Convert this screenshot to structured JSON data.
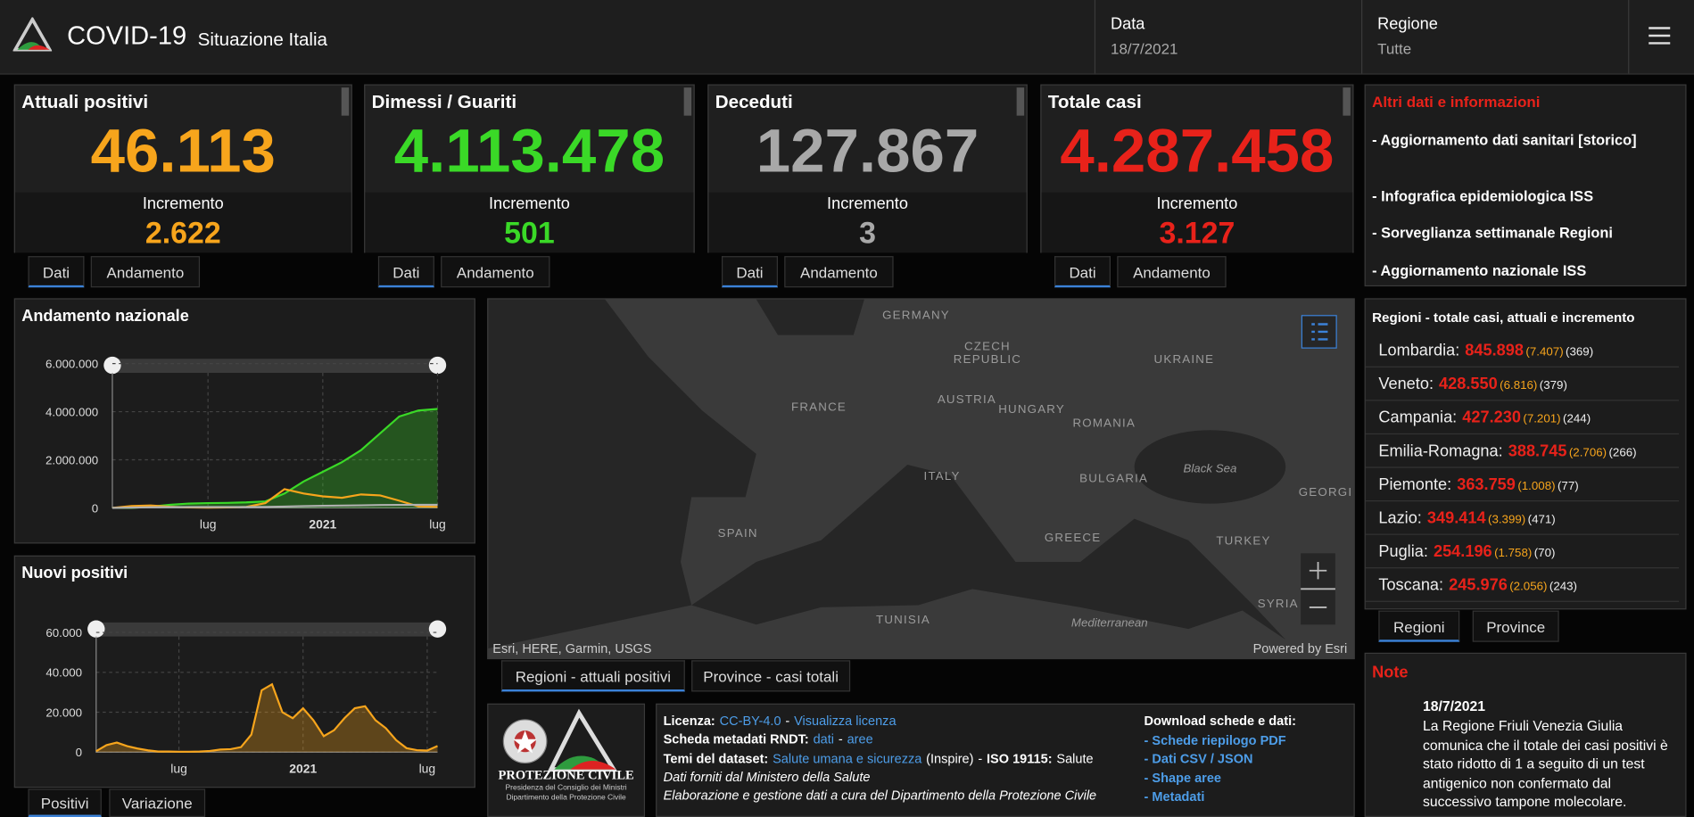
{
  "header": {
    "title": "COVID-19",
    "subtitle": "Situazione Italia",
    "date_label": "Data",
    "date": "18/7/2021",
    "region_label": "Regione",
    "region": "Tutte"
  },
  "cards": [
    {
      "title": "Attuali positivi",
      "value": "46.113",
      "increment_label": "Incremento",
      "increment": "2.622",
      "color": "#f7a51c",
      "tabs": [
        "Dati",
        "Andamento"
      ]
    },
    {
      "title": "Dimessi / Guariti",
      "value": "4.113.478",
      "increment_label": "Incremento",
      "increment": "501",
      "color": "#3ad927",
      "tabs": [
        "Dati",
        "Andamento"
      ]
    },
    {
      "title": "Deceduti",
      "value": "127.867",
      "increment_label": "Incremento",
      "increment": "3",
      "color": "#a8a8a8",
      "tabs": [
        "Dati",
        "Andamento"
      ]
    },
    {
      "title": "Totale casi",
      "value": "4.287.458",
      "increment_label": "Incremento",
      "increment": "3.127",
      "color": "#e8221a",
      "tabs": [
        "Dati",
        "Andamento"
      ]
    }
  ],
  "info": {
    "title": "Altri dati e informazioni",
    "links": [
      "- Aggiornamento dati sanitari [storico]",
      "- Infografica epidemiologica ISS",
      "- Sorveglianza settimanale Regioni",
      "- Aggiornamento nazionale ISS"
    ]
  },
  "regions": {
    "title": "Regioni - totale casi, attuali e incremento",
    "rows": [
      {
        "name": "Lombardia:",
        "total": "845.898",
        "current": "(7.407)",
        "increment": "(369)"
      },
      {
        "name": "Veneto:",
        "total": "428.550",
        "current": "(6.816)",
        "increment": "(379)"
      },
      {
        "name": "Campania:",
        "total": "427.230",
        "current": "(7.201)",
        "increment": "(244)"
      },
      {
        "name": "Emilia-Romagna:",
        "total": "388.745",
        "current": "(2.706)",
        "increment": "(266)"
      },
      {
        "name": "Piemonte:",
        "total": "363.759",
        "current": "(1.008)",
        "increment": "(77)"
      },
      {
        "name": "Lazio:",
        "total": "349.414",
        "current": "(3.399)",
        "increment": "(471)"
      },
      {
        "name": "Puglia:",
        "total": "254.196",
        "current": "(1.758)",
        "increment": "(70)"
      },
      {
        "name": "Toscana:",
        "total": "245.976",
        "current": "(2.056)",
        "increment": "(243)"
      }
    ],
    "tabs": [
      "Regioni",
      "Province"
    ]
  },
  "map": {
    "labels": [
      "GERMANY",
      "CZECH",
      "REPUBLIC",
      "UKRAINE",
      "FRANCE",
      "AUSTRIA",
      "HUNGARY",
      "ROMANIA",
      "ITALY",
      "BULGARIA",
      "Black Sea",
      "GEORGI",
      "SPAIN",
      "GREECE",
      "TURKEY",
      "TUNISIA",
      "Mediterranean",
      "SYRIA"
    ],
    "attribution": "Esri, HERE, Garmin, USGS",
    "powered": "Powered by Esri",
    "tabs": [
      "Regioni - attuali positivi",
      "Province - casi totali"
    ]
  },
  "note": {
    "title": "Note",
    "date": "18/7/2021",
    "text": "La Regione Friuli Venezia Giulia comunica che il totale dei casi positivi è stato ridotto di 1 a seguito di un test antigenico non confermato dal successivo tampone molecolare."
  },
  "footer": {
    "agency": "PROTEZIONE CIVILE",
    "agency_sub": "Presidenza del Consiglio dei Ministri",
    "agency_sub2": "Dipartimento della Protezione Civile",
    "lines": [
      [
        "Licenza:",
        "CC-BY-4.0",
        "-",
        "Visualizza licenza"
      ],
      [
        "Scheda metadati RNDT:",
        "dati",
        "-",
        "aree"
      ],
      [
        "Temi del dataset:",
        "Salute umana e sicurezza",
        "(Inspire)",
        "-",
        "ISO 19115:",
        "Salute"
      ],
      [
        "Dati forniti dal Ministero della Salute"
      ],
      [
        "Elaborazione e gestione dati a cura del Dipartimento della Protezione Civile"
      ]
    ],
    "downloads_title": "Download schede e dati:",
    "downloads": [
      "- Schede riepilogo PDF",
      "- Dati CSV / JSON",
      "- Shape aree",
      "- Metadati"
    ]
  },
  "chart_data": [
    {
      "type": "line",
      "title": "Andamento nazionale",
      "categories": [
        null,
        null,
        null,
        null,
        null,
        "lug",
        null,
        null,
        null,
        null,
        null,
        "2021",
        null,
        null,
        null,
        null,
        null,
        "lug"
      ],
      "series": [
        {
          "color": "#3ad927",
          "area": true,
          "values": [
            0,
            1000,
            50000,
            130000,
            180000,
            200000,
            210000,
            230000,
            270000,
            600000,
            1100000,
            1500000,
            1900000,
            2400000,
            3100000,
            3800000,
            4050000,
            4113478
          ]
        },
        {
          "color": "#f7a51c",
          "values": [
            0,
            80000,
            100000,
            50000,
            20000,
            13000,
            20000,
            40000,
            200000,
            780000,
            600000,
            480000,
            420000,
            560000,
            520000,
            300000,
            60000,
            46113
          ]
        },
        {
          "color": "#b0b0b0",
          "values": [
            0,
            12000,
            28000,
            33000,
            34700,
            35100,
            35400,
            36000,
            40000,
            55000,
            74000,
            89000,
            98000,
            108000,
            121000,
            126000,
            127500,
            127867
          ]
        }
      ],
      "ylim": [
        0,
        6200000
      ],
      "yticks": [
        0,
        {
          "value": 2000000,
          "label": "2.000.000"
        },
        {
          "value": 4000000,
          "label": "4.000.000"
        },
        {
          "value": 6000000,
          "label": "6.000.000"
        }
      ],
      "grid": true
    },
    {
      "type": "area",
      "title": "Nuovi positivi",
      "categories": [
        null,
        null,
        null,
        null,
        null,
        null,
        null,
        null,
        "lug",
        null,
        null,
        null,
        null,
        null,
        null,
        null,
        null,
        null,
        null,
        null,
        "2021",
        null,
        null,
        null,
        null,
        null,
        null,
        null,
        null,
        null,
        null,
        null,
        "lug",
        null
      ],
      "series": [
        {
          "color": "#f7a51c",
          "values": [
            500,
            3500,
            4800,
            3000,
            1800,
            900,
            300,
            300,
            200,
            200,
            300,
            600,
            1300,
            1500,
            2500,
            8800,
            31000,
            34000,
            20000,
            17000,
            22000,
            16000,
            8000,
            11000,
            17000,
            22000,
            23000,
            16000,
            12000,
            6000,
            2000,
            1000,
            800,
            3100
          ]
        }
      ],
      "ylim": [
        0,
        65000
      ],
      "yticks": [
        0,
        {
          "value": 20000,
          "label": "20.000"
        },
        {
          "value": 40000,
          "label": "40.000"
        },
        {
          "value": 60000,
          "label": "60.000"
        }
      ],
      "grid": true,
      "tabs": [
        "Positivi",
        "Variazione"
      ]
    }
  ]
}
